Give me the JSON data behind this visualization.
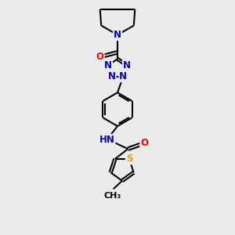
{
  "bg_color": "#ebebeb",
  "bond_color": "#000000",
  "N_color": "#0000cc",
  "O_color": "#ff0000",
  "S_color": "#ccaa00",
  "line_width": 1.5,
  "font_size": 8.5,
  "fig_size": [
    3.0,
    3.0
  ],
  "dpi": 100,
  "xlim": [
    0,
    10
  ],
  "ylim": [
    0,
    10
  ]
}
